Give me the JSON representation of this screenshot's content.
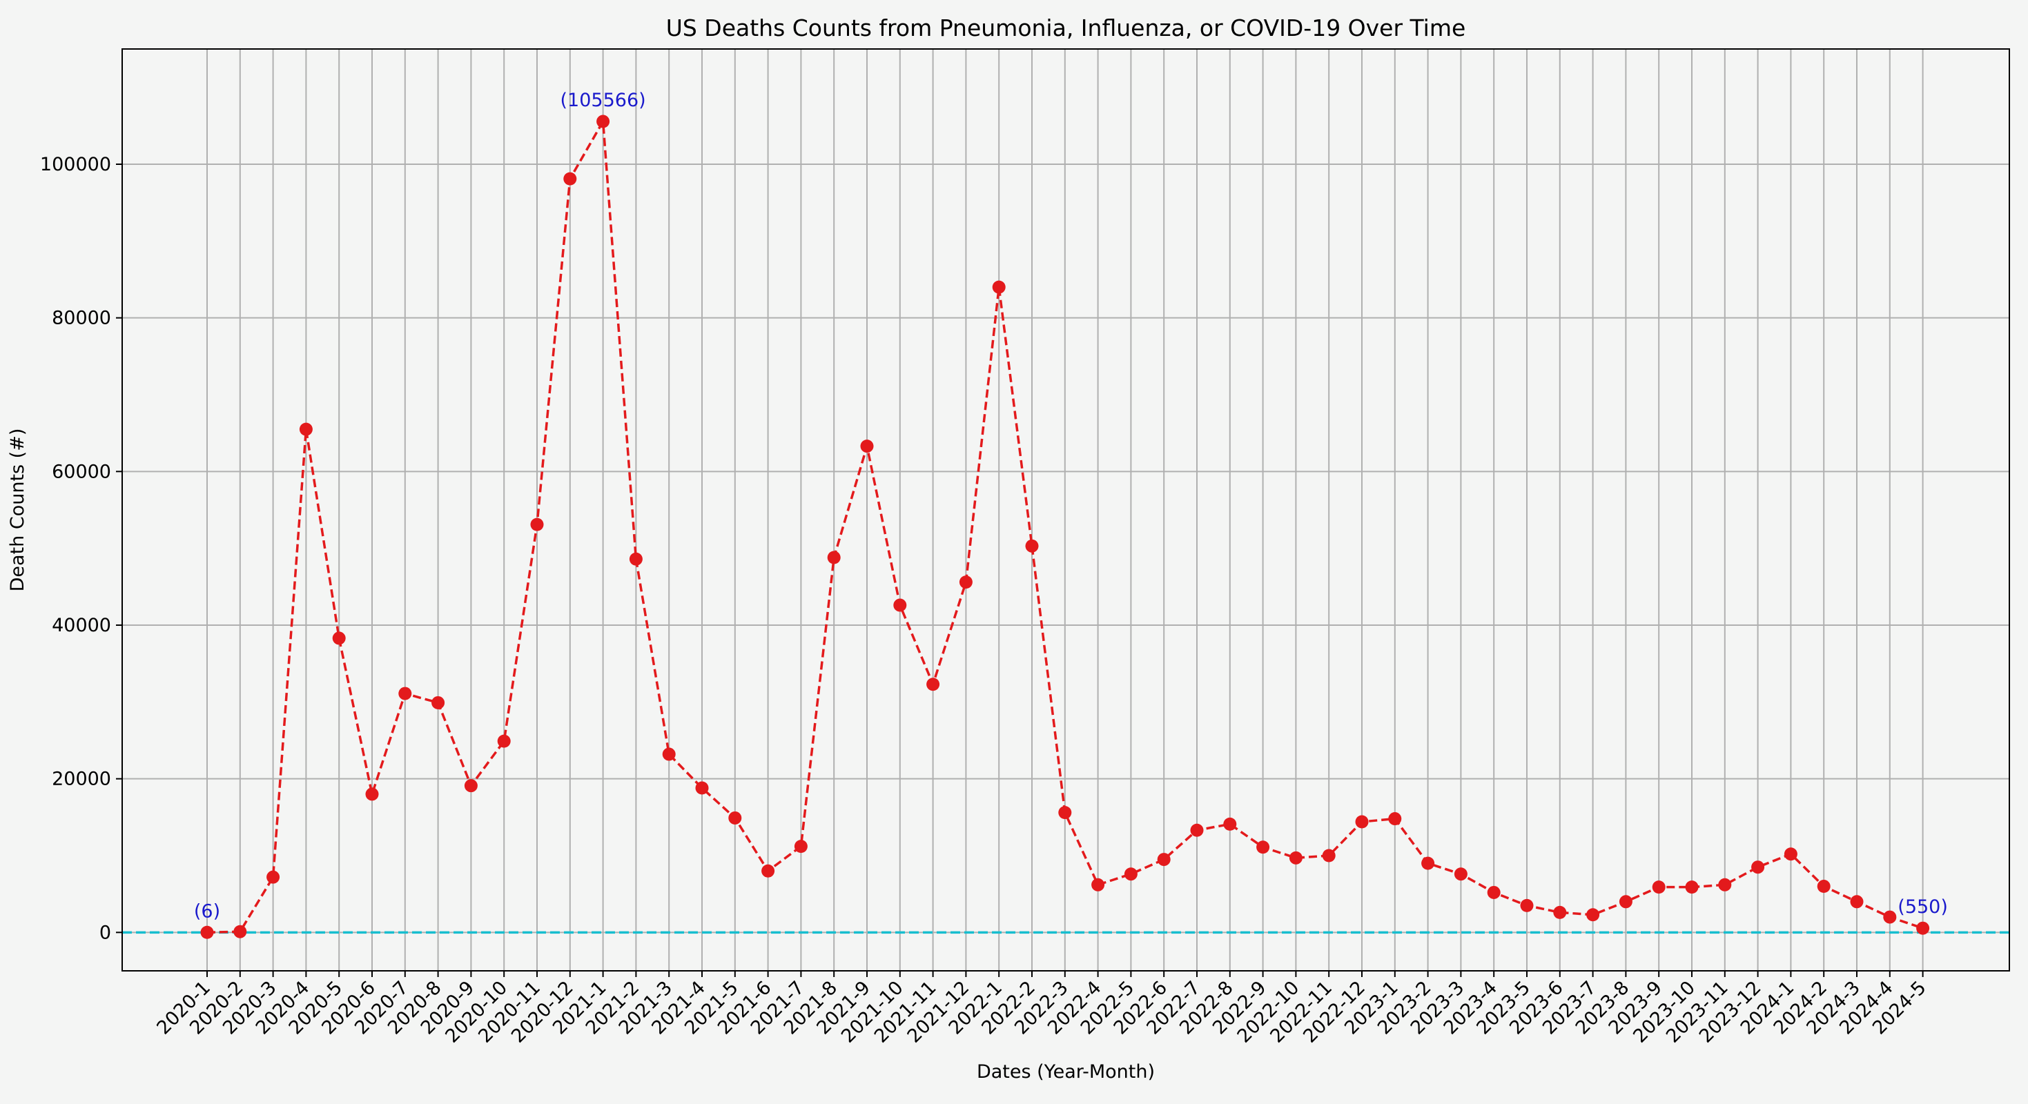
{
  "chart_data": {
    "type": "line",
    "title": "US Deaths Counts from Pneumonia, Influenza, or COVID-19 Over Time",
    "xlabel": "Dates (Year-Month)",
    "ylabel": "Death Counts (#)",
    "ylim": [
      -5000,
      115000
    ],
    "yticks": [
      0,
      20000,
      40000,
      60000,
      80000,
      100000
    ],
    "grid": true,
    "line_color": "#e31a1c",
    "baseline_color": "#17becf",
    "annotation_color": "#1a1acc",
    "baseline_value": 0,
    "categories": [
      "2020-1",
      "2020-2",
      "2020-3",
      "2020-4",
      "2020-5",
      "2020-6",
      "2020-7",
      "2020-8",
      "2020-9",
      "2020-10",
      "2020-11",
      "2020-12",
      "2021-1",
      "2021-2",
      "2021-3",
      "2021-4",
      "2021-5",
      "2021-6",
      "2021-7",
      "2021-8",
      "2021-9",
      "2021-10",
      "2021-11",
      "2021-12",
      "2022-1",
      "2022-2",
      "2022-3",
      "2022-4",
      "2022-5",
      "2022-6",
      "2022-7",
      "2022-8",
      "2022-9",
      "2022-10",
      "2022-11",
      "2022-12",
      "2023-1",
      "2023-2",
      "2023-3",
      "2023-4",
      "2023-5",
      "2023-6",
      "2023-7",
      "2023-8",
      "2023-9",
      "2023-10",
      "2023-11",
      "2023-12",
      "2024-1",
      "2024-2",
      "2024-3",
      "2024-4",
      "2024-5"
    ],
    "values": [
      6,
      100,
      7200,
      65500,
      38300,
      18000,
      31100,
      29900,
      19100,
      24900,
      53100,
      98100,
      105566,
      48600,
      23200,
      18800,
      14900,
      8000,
      11200,
      48800,
      63300,
      42600,
      32300,
      45600,
      84000,
      50300,
      15600,
      6200,
      7600,
      9500,
      13300,
      14100,
      11100,
      9700,
      10000,
      14400,
      14800,
      9000,
      7600,
      5200,
      3500,
      2600,
      2300,
      4000,
      5900,
      5900,
      6200,
      8500,
      10200,
      6000,
      4000,
      2000,
      550
    ],
    "annotations": [
      {
        "index": 0,
        "text": "(6)"
      },
      {
        "index": 12,
        "text": "(105566)"
      },
      {
        "index": 52,
        "text": "(550)"
      }
    ]
  }
}
